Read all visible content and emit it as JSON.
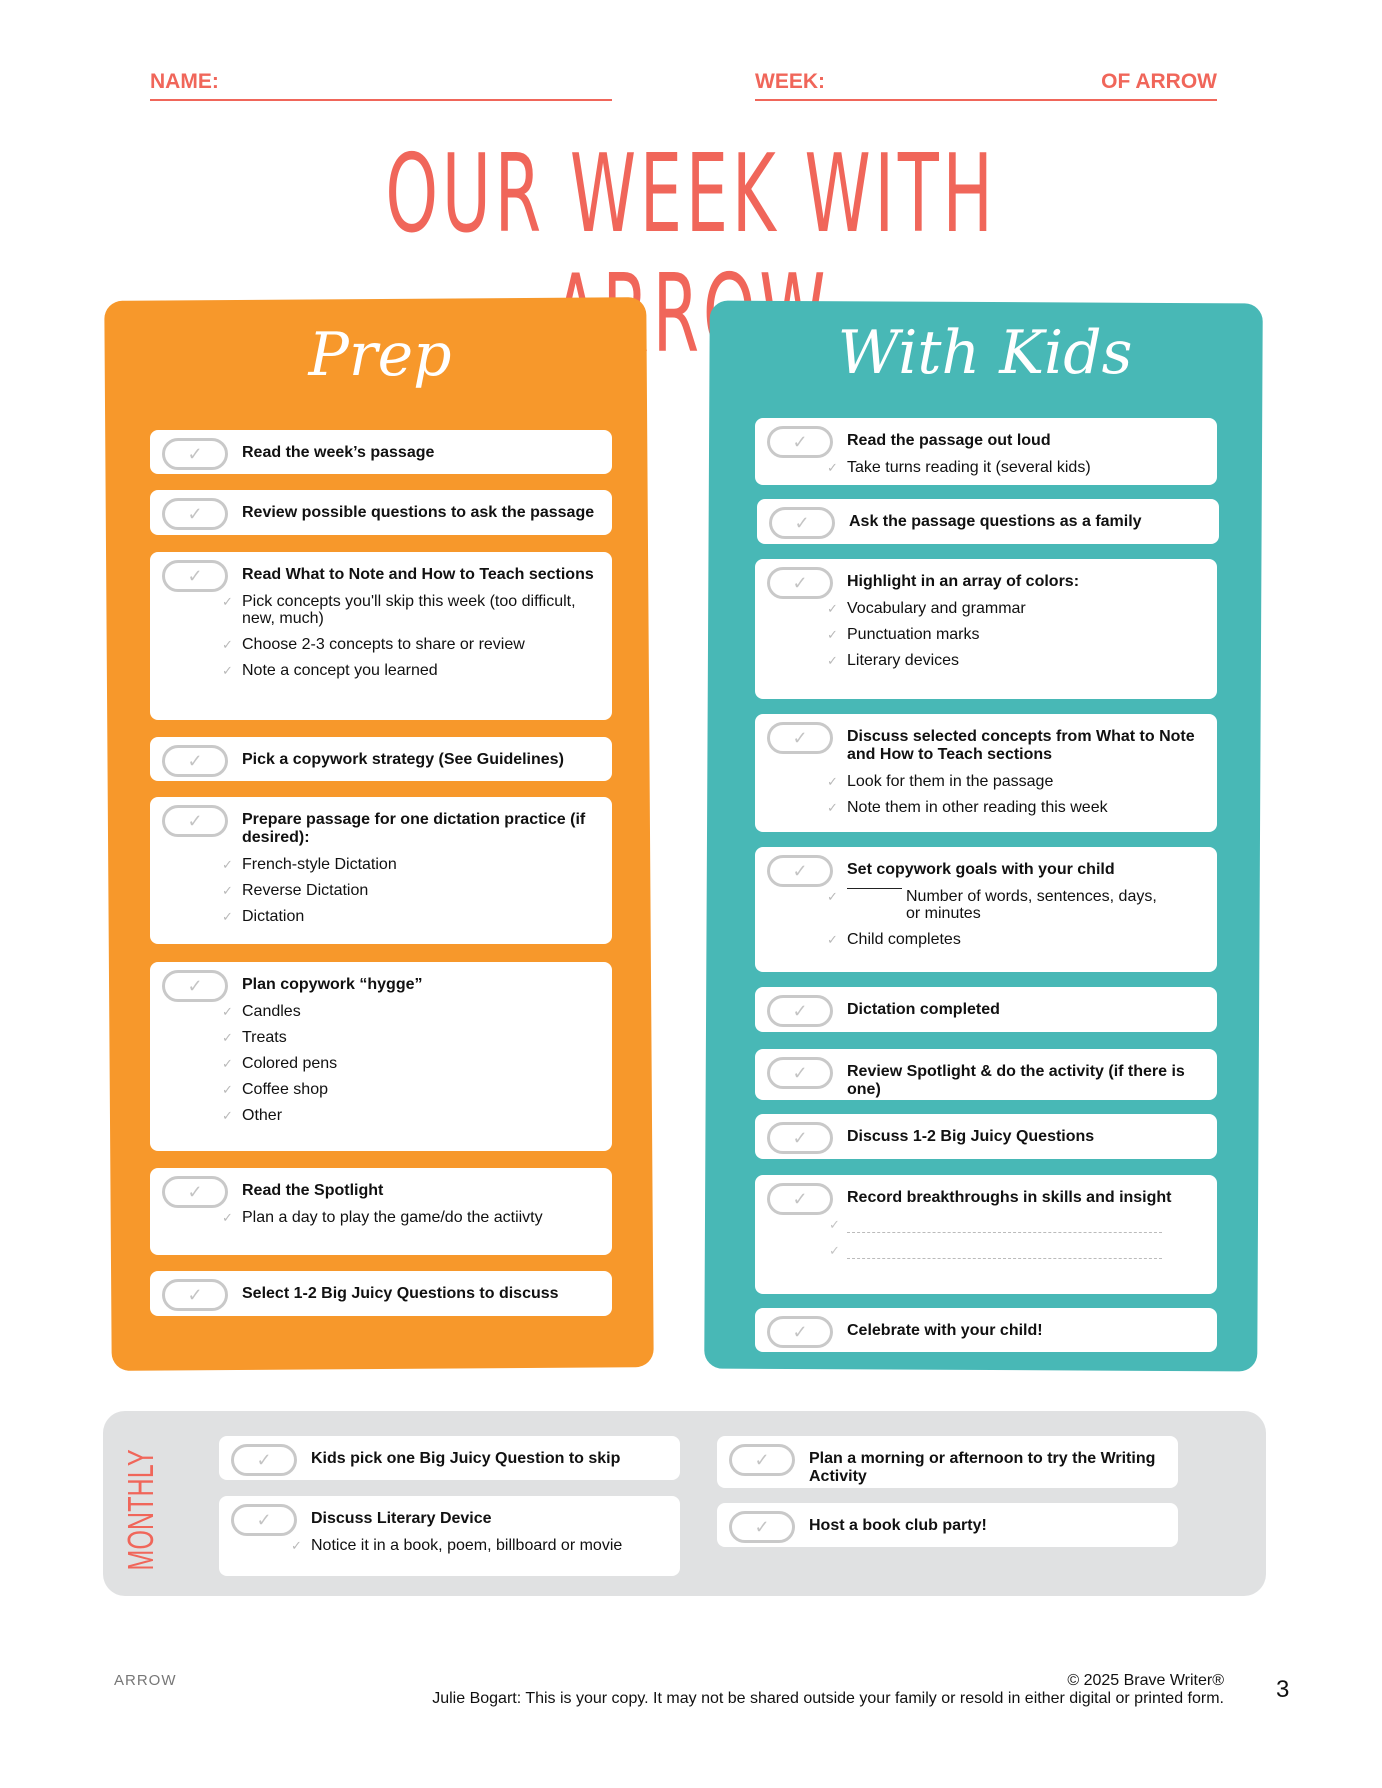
{
  "header": {
    "name_label": "NAME:",
    "week_label": "WEEK:",
    "week_suffix": "OF ARROW"
  },
  "title": "OUR WEEK WITH ARROW",
  "prep": {
    "heading": "Prep",
    "cards": [
      {
        "title": "Read the week’s passage",
        "items": []
      },
      {
        "title": "Review possible questions to ask the passage",
        "items": []
      },
      {
        "title": "Read What to Note and How to Teach sections",
        "items": [
          "Pick concepts you'll skip this week (too difficult, new, much)",
          "Choose 2-3 concepts to share or review",
          "Note a concept you learned"
        ]
      },
      {
        "title": "Pick a copywork strategy (See Guidelines)",
        "items": []
      },
      {
        "title": "Prepare passage for one dictation practice (if desired):",
        "items": [
          "French-style Dictation",
          "Reverse Dictation",
          "Dictation"
        ]
      },
      {
        "title": "Plan copywork “hygge”",
        "items": [
          "Candles",
          "Treats",
          "Colored pens",
          "Coffee shop",
          "Other"
        ]
      },
      {
        "title": "Read the Spotlight",
        "items": [
          "Plan a day to play the game/do the actiivty"
        ]
      },
      {
        "title": "Select 1-2 Big Juicy Questions to discuss",
        "items": []
      }
    ]
  },
  "kids": {
    "heading": "With Kids",
    "cards": [
      {
        "title": "Read the passage out loud",
        "items": [
          "Take turns reading it (several kids)"
        ]
      },
      {
        "title": "Ask the passage questions as a family",
        "items": []
      },
      {
        "title": "Highlight in an array of colors:",
        "items": [
          "Vocabulary and grammar",
          "Punctuation marks",
          "Literary devices"
        ]
      },
      {
        "title": "Discuss selected concepts from What to Note and How to Teach sections",
        "items": [
          "Look for them in the passage",
          "Note them in other reading this week"
        ]
      },
      {
        "title": "Set copywork goals with your child",
        "items": [
          "Number of words, sentences, days, or minutes",
          "Child completes"
        ]
      },
      {
        "title": "Dictation completed",
        "items": []
      },
      {
        "title": "Review Spotlight & do the activity (if there is one)",
        "items": []
      },
      {
        "title": "Discuss 1-2 Big Juicy Questions",
        "items": []
      },
      {
        "title": "Record breakthroughs in skills and insight",
        "items": []
      },
      {
        "title": "Celebrate with your child!",
        "items": []
      }
    ]
  },
  "monthly": {
    "label": "MONTHLY",
    "cards": [
      {
        "title": "Kids pick one Big Juicy Question to skip",
        "items": []
      },
      {
        "title": "Discuss Literary Device",
        "items": [
          "Notice it in a book, poem, billboard or movie"
        ]
      },
      {
        "title": "Plan a morning or afternoon to try the Writing Activity",
        "items": []
      },
      {
        "title": "Host a book club party!",
        "items": []
      }
    ]
  },
  "footer": {
    "logo": "ARROW",
    "copyright": "© 2025 Brave Writer®",
    "notice": "Julie Bogart: This is your copy. It may not be shared outside your family or resold in either digital or printed form.",
    "page": "3"
  },
  "icons": {
    "checkbox": "check-pill-icon",
    "tick": "check-mark-icon"
  },
  "colors": {
    "accent": "#f0665a",
    "orange": "#f7982b",
    "teal": "#48b8b6",
    "gray": "#e0e1e2"
  }
}
